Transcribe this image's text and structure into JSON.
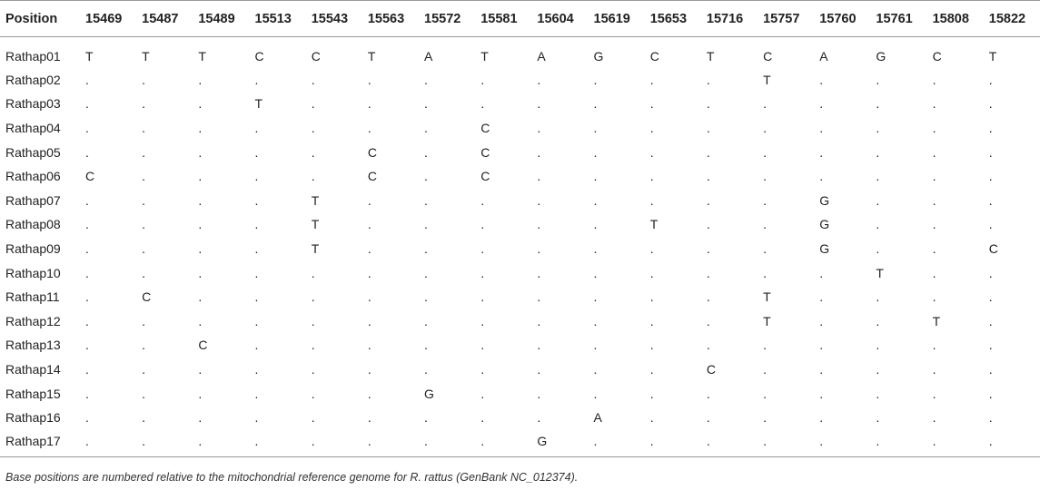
{
  "table": {
    "header_label": "Position",
    "positions": [
      "15469",
      "15487",
      "15489",
      "15513",
      "15543",
      "15563",
      "15572",
      "15581",
      "15604",
      "15619",
      "15653",
      "15716",
      "15757",
      "15760",
      "15761",
      "15808",
      "15822"
    ],
    "rows": [
      {
        "label": "Rathap01",
        "cells": [
          "T",
          "T",
          "T",
          "C",
          "C",
          "T",
          "A",
          "T",
          "A",
          "G",
          "C",
          "T",
          "C",
          "A",
          "G",
          "C",
          "T"
        ]
      },
      {
        "label": "Rathap02",
        "cells": [
          ".",
          ".",
          ".",
          ".",
          ".",
          ".",
          ".",
          ".",
          ".",
          ".",
          ".",
          ".",
          "T",
          ".",
          ".",
          ".",
          "."
        ]
      },
      {
        "label": "Rathap03",
        "cells": [
          ".",
          ".",
          ".",
          "T",
          ".",
          ".",
          ".",
          ".",
          ".",
          ".",
          ".",
          ".",
          ".",
          ".",
          ".",
          ".",
          "."
        ]
      },
      {
        "label": "Rathap04",
        "cells": [
          ".",
          ".",
          ".",
          ".",
          ".",
          ".",
          ".",
          "C",
          ".",
          ".",
          ".",
          ".",
          ".",
          ".",
          ".",
          ".",
          "."
        ]
      },
      {
        "label": "Rathap05",
        "cells": [
          ".",
          ".",
          ".",
          ".",
          ".",
          "C",
          ".",
          "C",
          ".",
          ".",
          ".",
          ".",
          ".",
          ".",
          ".",
          ".",
          "."
        ]
      },
      {
        "label": "Rathap06",
        "cells": [
          "C",
          ".",
          ".",
          ".",
          ".",
          "C",
          ".",
          "C",
          ".",
          ".",
          ".",
          ".",
          ".",
          ".",
          ".",
          ".",
          "."
        ]
      },
      {
        "label": "Rathap07",
        "cells": [
          ".",
          ".",
          ".",
          ".",
          "T",
          ".",
          ".",
          ".",
          ".",
          ".",
          ".",
          ".",
          ".",
          "G",
          ".",
          ".",
          "."
        ]
      },
      {
        "label": "Rathap08",
        "cells": [
          ".",
          ".",
          ".",
          ".",
          "T",
          ".",
          ".",
          ".",
          ".",
          ".",
          "T",
          ".",
          ".",
          "G",
          ".",
          ".",
          "."
        ]
      },
      {
        "label": "Rathap09",
        "cells": [
          ".",
          ".",
          ".",
          ".",
          "T",
          ".",
          ".",
          ".",
          ".",
          ".",
          ".",
          ".",
          ".",
          "G",
          ".",
          ".",
          "C"
        ]
      },
      {
        "label": "Rathap10",
        "cells": [
          ".",
          ".",
          ".",
          ".",
          ".",
          ".",
          ".",
          ".",
          ".",
          ".",
          ".",
          ".",
          ".",
          ".",
          "T",
          ".",
          "."
        ]
      },
      {
        "label": "Rathap11",
        "cells": [
          ".",
          "C",
          ".",
          ".",
          ".",
          ".",
          ".",
          ".",
          ".",
          ".",
          ".",
          ".",
          "T",
          ".",
          ".",
          ".",
          "."
        ]
      },
      {
        "label": "Rathap12",
        "cells": [
          ".",
          ".",
          ".",
          ".",
          ".",
          ".",
          ".",
          ".",
          ".",
          ".",
          ".",
          ".",
          "T",
          ".",
          ".",
          "T",
          "."
        ]
      },
      {
        "label": "Rathap13",
        "cells": [
          ".",
          ".",
          "C",
          ".",
          ".",
          ".",
          ".",
          ".",
          ".",
          ".",
          ".",
          ".",
          ".",
          ".",
          ".",
          ".",
          "."
        ]
      },
      {
        "label": "Rathap14",
        "cells": [
          ".",
          ".",
          ".",
          ".",
          ".",
          ".",
          ".",
          ".",
          ".",
          ".",
          ".",
          "C",
          ".",
          ".",
          ".",
          ".",
          "."
        ]
      },
      {
        "label": "Rathap15",
        "cells": [
          ".",
          ".",
          ".",
          ".",
          ".",
          ".",
          "G",
          ".",
          ".",
          ".",
          ".",
          ".",
          ".",
          ".",
          ".",
          ".",
          "."
        ]
      },
      {
        "label": "Rathap16",
        "cells": [
          ".",
          ".",
          ".",
          ".",
          ".",
          ".",
          ".",
          ".",
          ".",
          "A",
          ".",
          ".",
          ".",
          ".",
          ".",
          ".",
          "."
        ]
      },
      {
        "label": "Rathap17",
        "cells": [
          ".",
          ".",
          ".",
          ".",
          ".",
          ".",
          ".",
          ".",
          "G",
          ".",
          ".",
          ".",
          ".",
          ".",
          ".",
          ".",
          "."
        ]
      }
    ]
  },
  "footnote": {
    "before": "Base positions are numbered relative to the mitochondrial reference genome for ",
    "species": "R. rattus",
    "after": " (GenBank NC_012374)."
  }
}
